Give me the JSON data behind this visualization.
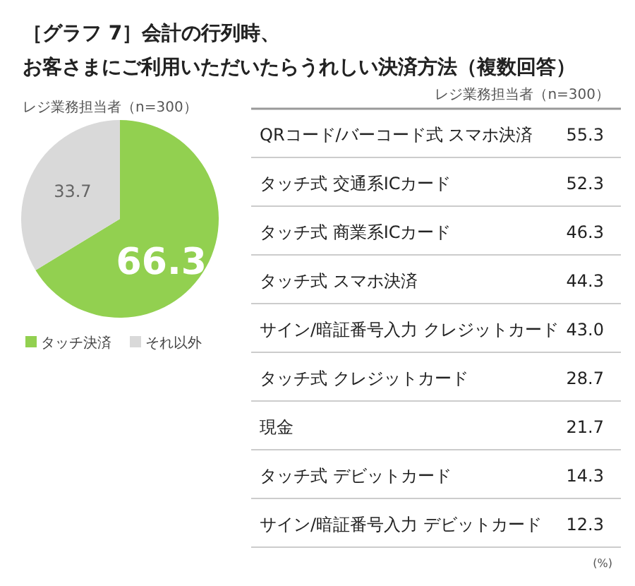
{
  "chart_data": [
    {
      "type": "pie",
      "title": "［グラフ 7］会計の行列時、お客さまにご利用いただいたらうれしい決済方法（複数回答）",
      "annotations": [
        "レジ業務担当者（n=300）"
      ],
      "categories": [
        "タッチ決済",
        "それ以外"
      ],
      "values": [
        66.3,
        33.7
      ],
      "colors": [
        "#92d050",
        "#d9d9d9"
      ],
      "data_labels": true,
      "legend": "bottom"
    },
    {
      "type": "other",
      "subtitle": "レジ業務担当者（n=300）",
      "categories": [
        "QRコード/バーコード式 スマホ決済",
        "タッチ式 交通系ICカード",
        "タッチ式 商業系ICカード",
        "タッチ式 スマホ決済",
        "サイン/暗証番号入力 クレジットカード",
        "タッチ式 クレジットカード",
        "現金",
        "タッチ式 デビットカード",
        "サイン/暗証番号入力 デビットカード"
      ],
      "values": [
        55.3,
        52.3,
        46.3,
        44.3,
        43.0,
        28.7,
        21.7,
        14.3,
        12.3
      ],
      "value_labels": [
        "55.3",
        "52.3",
        "46.3",
        "44.3",
        "43.0",
        "28.7",
        "21.7",
        "14.3",
        "12.3"
      ],
      "annotations": [
        "(%)"
      ]
    }
  ]
}
